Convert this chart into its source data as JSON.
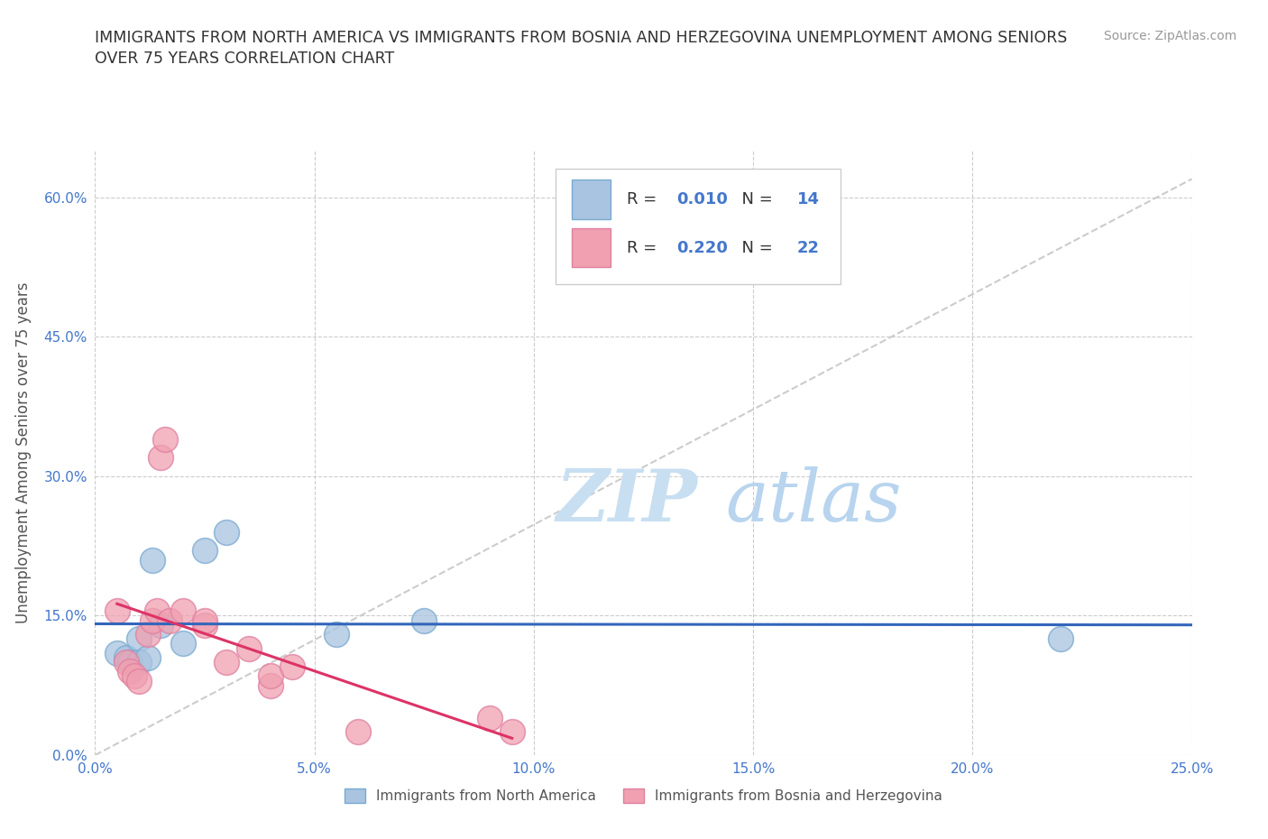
{
  "title_line1": "IMMIGRANTS FROM NORTH AMERICA VS IMMIGRANTS FROM BOSNIA AND HERZEGOVINA UNEMPLOYMENT AMONG SENIORS",
  "title_line2": "OVER 75 YEARS CORRELATION CHART",
  "source": "Source: ZipAtlas.com",
  "ylabel": "Unemployment Among Seniors over 75 years",
  "xlim": [
    0.0,
    0.25
  ],
  "ylim": [
    0.0,
    0.65
  ],
  "xticks": [
    0.0,
    0.05,
    0.1,
    0.15,
    0.2,
    0.25
  ],
  "xtick_labels": [
    "0.0%",
    "5.0%",
    "10.0%",
    "15.0%",
    "20.0%",
    "25.0%"
  ],
  "yticks": [
    0.0,
    0.15,
    0.3,
    0.45,
    0.6
  ],
  "ytick_labels": [
    "0.0%",
    "15.0%",
    "30.0%",
    "45.0%",
    "60.0%"
  ],
  "blue_color": "#a8c4e0",
  "pink_color": "#f0a0b0",
  "blue_edge_color": "#7aaad0",
  "pink_edge_color": "#e080a0",
  "blue_line_color": "#3366bb",
  "pink_line_color": "#dd3366",
  "ref_line_color": "#cccccc",
  "R_blue": 0.01,
  "N_blue": 14,
  "R_pink": 0.22,
  "N_pink": 22,
  "legend_label_blue": "Immigrants from North America",
  "legend_label_pink": "Immigrants from Bosnia and Herzegovina",
  "watermark_zip": "ZIP",
  "watermark_atlas": "atlas",
  "blue_scatter_x": [
    0.005,
    0.007,
    0.008,
    0.01,
    0.01,
    0.012,
    0.013,
    0.015,
    0.02,
    0.025,
    0.03,
    0.055,
    0.075,
    0.22
  ],
  "blue_scatter_y": [
    0.11,
    0.105,
    0.1,
    0.125,
    0.1,
    0.105,
    0.21,
    0.14,
    0.12,
    0.22,
    0.24,
    0.13,
    0.145,
    0.125
  ],
  "pink_scatter_x": [
    0.005,
    0.007,
    0.008,
    0.009,
    0.01,
    0.012,
    0.013,
    0.014,
    0.015,
    0.016,
    0.017,
    0.02,
    0.025,
    0.025,
    0.03,
    0.035,
    0.04,
    0.04,
    0.045,
    0.06,
    0.09,
    0.095
  ],
  "pink_scatter_y": [
    0.155,
    0.1,
    0.09,
    0.085,
    0.08,
    0.13,
    0.145,
    0.155,
    0.32,
    0.34,
    0.145,
    0.155,
    0.14,
    0.145,
    0.1,
    0.115,
    0.075,
    0.085,
    0.095,
    0.025,
    0.04,
    0.025
  ],
  "background_color": "#ffffff",
  "grid_color": "#cccccc"
}
